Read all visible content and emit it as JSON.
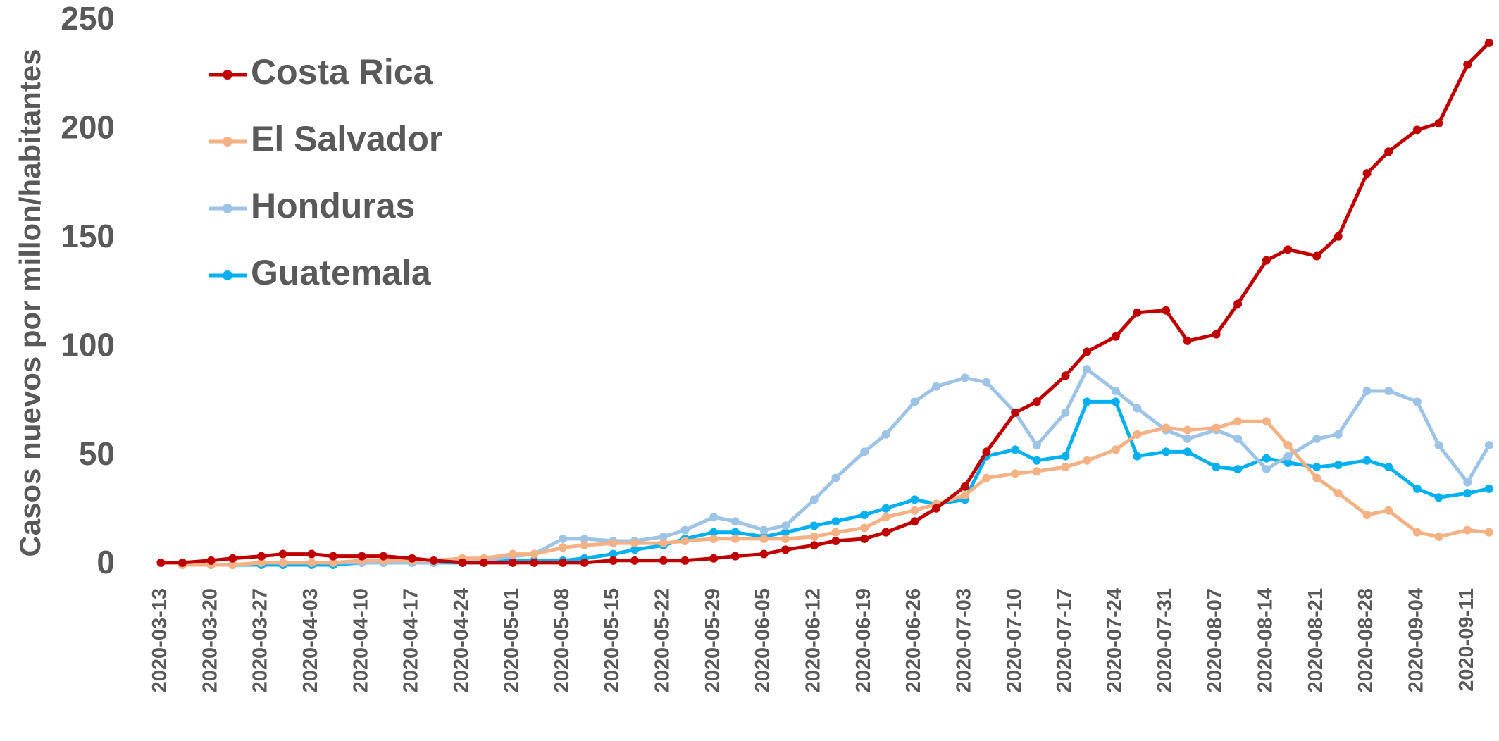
{
  "chart_data": {
    "type": "line",
    "y_label": "Casos nuevos por millon/habitantes",
    "x": [
      "2020-03-13",
      "2020-03-16",
      "2020-03-20",
      "2020-03-23",
      "2020-03-27",
      "2020-03-30",
      "2020-04-03",
      "2020-04-06",
      "2020-04-10",
      "2020-04-13",
      "2020-04-17",
      "2020-04-20",
      "2020-04-24",
      "2020-04-27",
      "2020-05-01",
      "2020-05-04",
      "2020-05-08",
      "2020-05-11",
      "2020-05-15",
      "2020-05-18",
      "2020-05-22",
      "2020-05-25",
      "2020-05-29",
      "2020-06-01",
      "2020-06-05",
      "2020-06-08",
      "2020-06-12",
      "2020-06-15",
      "2020-06-19",
      "2020-06-22",
      "2020-06-26",
      "2020-06-29",
      "2020-07-03",
      "2020-07-06",
      "2020-07-10",
      "2020-07-13",
      "2020-07-17",
      "2020-07-20",
      "2020-07-24",
      "2020-07-27",
      "2020-07-31",
      "2020-08-03",
      "2020-08-07",
      "2020-08-10",
      "2020-08-14",
      "2020-08-17",
      "2020-08-21",
      "2020-08-24",
      "2020-08-28",
      "2020-08-31",
      "2020-09-04",
      "2020-09-07",
      "2020-09-11",
      "2020-09-14"
    ],
    "series": [
      {
        "name": "Costa Rica",
        "color": "#c00000",
        "values": [
          1,
          1,
          2,
          3,
          4,
          5,
          5,
          4,
          4,
          4,
          3,
          2,
          1,
          1,
          1,
          1,
          1,
          1,
          2,
          2,
          2,
          2,
          3,
          4,
          5,
          7,
          9,
          11,
          12,
          15,
          20,
          26,
          36,
          52,
          70,
          75,
          87,
          98,
          105,
          116,
          117,
          103,
          106,
          120,
          140,
          145,
          142,
          151,
          180,
          190,
          200,
          203,
          230,
          240
        ]
      },
      {
        "name": "El Salvador",
        "color": "#f4b183",
        "values": [
          null,
          0,
          0,
          0,
          1,
          1,
          1,
          1,
          2,
          2,
          2,
          2,
          3,
          3,
          5,
          5,
          8,
          9,
          10,
          10,
          10,
          11,
          12,
          12,
          12,
          12,
          13,
          15,
          17,
          22,
          25,
          28,
          32,
          40,
          42,
          43,
          45,
          48,
          53,
          60,
          63,
          62,
          63,
          66,
          66,
          55,
          40,
          33,
          23,
          25,
          15,
          13,
          16,
          15
        ]
      },
      {
        "name": "Honduras",
        "color": "#9dc3e6",
        "values": [
          null,
          0,
          0,
          0,
          1,
          1,
          1,
          1,
          1,
          1,
          1,
          1,
          2,
          2,
          4,
          5,
          12,
          12,
          11,
          11,
          13,
          16,
          22,
          20,
          16,
          18,
          30,
          40,
          52,
          60,
          75,
          82,
          86,
          84,
          70,
          55,
          70,
          90,
          80,
          72,
          62,
          58,
          62,
          58,
          44,
          50,
          58,
          60,
          80,
          80,
          75,
          55,
          38,
          55
        ]
      },
      {
        "name": "Guatemala",
        "color": "#00b0f0",
        "values": [
          null,
          null,
          0,
          0,
          0,
          0,
          0,
          0,
          1,
          1,
          1,
          1,
          1,
          1,
          2,
          2,
          2,
          3,
          5,
          7,
          9,
          12,
          15,
          15,
          13,
          15,
          18,
          20,
          23,
          26,
          30,
          28,
          30,
          50,
          53,
          48,
          50,
          75,
          75,
          50,
          52,
          52,
          45,
          44,
          49,
          47,
          45,
          46,
          48,
          45,
          35,
          31,
          33,
          35
        ]
      }
    ],
    "xlim": [
      "2020-03-11",
      "2020-09-15"
    ],
    "xticks": [
      "2020-03-13",
      "2020-03-20",
      "2020-03-27",
      "2020-04-03",
      "2020-04-10",
      "2020-04-17",
      "2020-04-24",
      "2020-05-01",
      "2020-05-08",
      "2020-05-15",
      "2020-05-22",
      "2020-05-29",
      "2020-06-05",
      "2020-06-12",
      "2020-06-19",
      "2020-06-26",
      "2020-07-03",
      "2020-07-10",
      "2020-07-17",
      "2020-07-24",
      "2020-07-31",
      "2020-08-07",
      "2020-08-14",
      "2020-08-21",
      "2020-08-28",
      "2020-09-04",
      "2020-09-11"
    ],
    "ylim": [
      0,
      250
    ],
    "yticks": [
      0,
      50,
      100,
      150,
      200,
      250
    ],
    "grid": false,
    "legend": "upper left"
  }
}
